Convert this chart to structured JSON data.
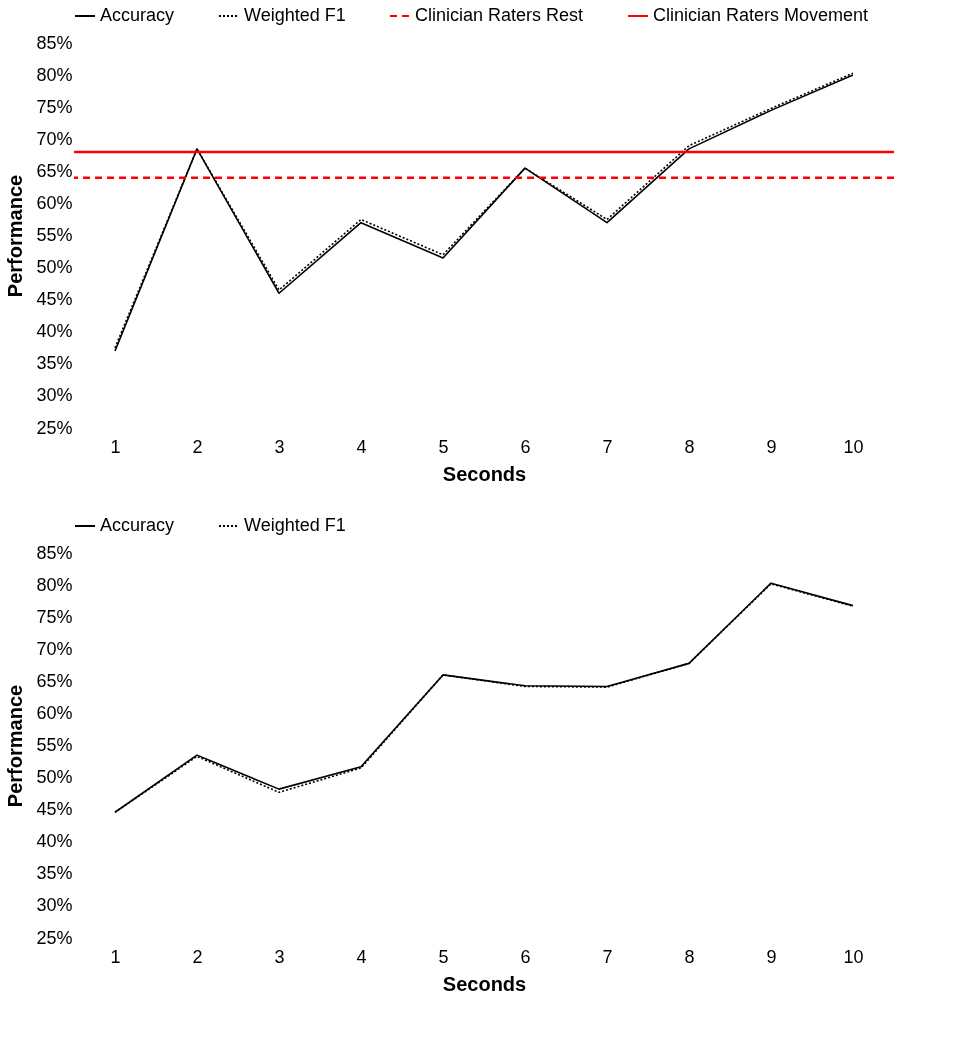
{
  "chart_data": [
    {
      "type": "line",
      "xlabel": "Seconds",
      "ylabel": "Performance",
      "categories": [
        "1",
        "2",
        "3",
        "4",
        "5",
        "6",
        "7",
        "8",
        "9",
        "10"
      ],
      "series": [
        {
          "name": "Accuracy",
          "color": "#000000",
          "line_style": "solid",
          "values": [
            37,
            68.5,
            46,
            57,
            51.5,
            65.5,
            57,
            68.5,
            74.5,
            80
          ]
        },
        {
          "name": "Weighted F1",
          "color": "#000000",
          "line_style": "dotted",
          "values": [
            37.5,
            68.5,
            46.5,
            57.5,
            52,
            65.5,
            57.5,
            69,
            74.8,
            80.3
          ]
        }
      ],
      "ref_lines": [
        {
          "axis": "y",
          "value": 64,
          "label": "Clinician Raters Rest",
          "color": "#ff0000",
          "line_style": "dashed"
        },
        {
          "axis": "y",
          "value": 68,
          "label": "Clinician Raters Movement",
          "color": "#ff0000",
          "line_style": "solid"
        }
      ],
      "ylim": [
        25,
        85
      ],
      "yticks": [
        {
          "value": 25,
          "label": "25%"
        },
        {
          "value": 30,
          "label": "30%"
        },
        {
          "value": 35,
          "label": "35%"
        },
        {
          "value": 40,
          "label": "40%"
        },
        {
          "value": 45,
          "label": "45%"
        },
        {
          "value": 50,
          "label": "50%"
        },
        {
          "value": 55,
          "label": "55%"
        },
        {
          "value": 60,
          "label": "60%"
        },
        {
          "value": 65,
          "label": "65%"
        },
        {
          "value": 70,
          "label": "70%"
        },
        {
          "value": 75,
          "label": "75%"
        },
        {
          "value": 80,
          "label": "80%"
        },
        {
          "value": 85,
          "label": "85%"
        }
      ],
      "legend": "top"
    },
    {
      "type": "line",
      "xlabel": "Seconds",
      "ylabel": "Performance",
      "categories": [
        "1",
        "2",
        "3",
        "4",
        "5",
        "6",
        "7",
        "8",
        "9",
        "10"
      ],
      "series": [
        {
          "name": "Accuracy",
          "color": "#000000",
          "line_style": "solid",
          "values": [
            44.6,
            53.5,
            48.2,
            51.7,
            66,
            64.3,
            64.2,
            67.8,
            80.3,
            76.8
          ]
        },
        {
          "name": "Weighted F1",
          "color": "#000000",
          "line_style": "dotted",
          "values": [
            44.6,
            53.3,
            47.7,
            51.5,
            66,
            64.2,
            64.1,
            67.8,
            80.2,
            76.7
          ]
        }
      ],
      "ylim": [
        25,
        85
      ],
      "yticks": [
        {
          "value": 25,
          "label": "25%"
        },
        {
          "value": 30,
          "label": "30%"
        },
        {
          "value": 35,
          "label": "35%"
        },
        {
          "value": 40,
          "label": "40%"
        },
        {
          "value": 45,
          "label": "45%"
        },
        {
          "value": 50,
          "label": "50%"
        },
        {
          "value": 55,
          "label": "55%"
        },
        {
          "value": 60,
          "label": "60%"
        },
        {
          "value": 65,
          "label": "65%"
        },
        {
          "value": 70,
          "label": "70%"
        },
        {
          "value": 75,
          "label": "75%"
        },
        {
          "value": 80,
          "label": "80%"
        },
        {
          "value": 85,
          "label": "85%"
        }
      ],
      "legend": "top"
    }
  ]
}
